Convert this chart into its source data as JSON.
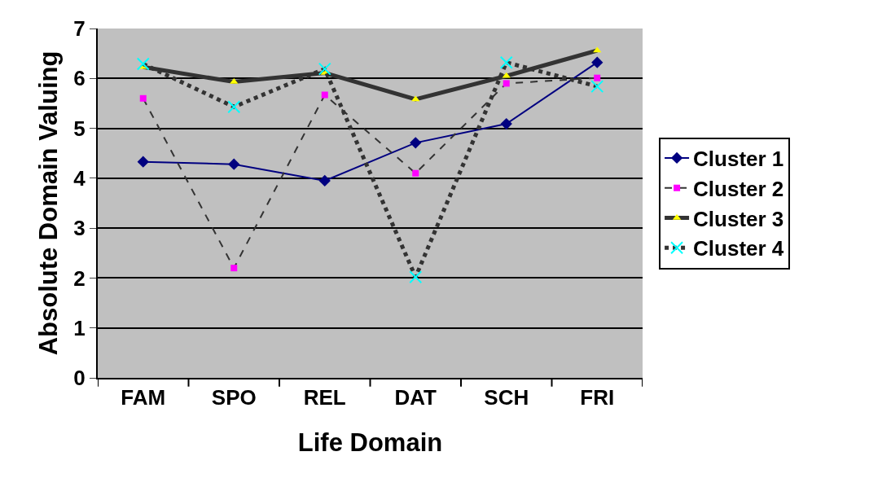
{
  "chart_data": {
    "type": "line",
    "xlabel": "Life Domain",
    "ylabel": "Absolute Domain Valuing",
    "categories": [
      "FAM",
      "SPO",
      "REL",
      "DAT",
      "SCH",
      "FRI"
    ],
    "ylim": [
      0,
      7
    ],
    "yticks": [
      0,
      1,
      2,
      3,
      4,
      5,
      6,
      7
    ],
    "grid": "y",
    "legend": "right",
    "series": [
      {
        "name": "Cluster 1",
        "color": "#000080",
        "marker": "diamond",
        "line_style": "solid",
        "values": [
          4.33,
          4.28,
          3.95,
          4.71,
          5.09,
          6.32
        ]
      },
      {
        "name": "Cluster 2",
        "color": "#ff00ff",
        "marker": "square",
        "line_style": "dashed",
        "values": [
          5.6,
          2.2,
          5.67,
          4.1,
          5.9,
          6.01
        ]
      },
      {
        "name": "Cluster 3",
        "color": "#ffff00",
        "marker": "triangle",
        "line_style": "solid",
        "values": [
          6.23,
          5.93,
          6.11,
          5.58,
          6.05,
          6.56
        ]
      },
      {
        "name": "Cluster 4",
        "color": "#00ffff",
        "marker": "cross",
        "line_style": "dotted",
        "values": [
          6.29,
          5.43,
          6.19,
          2.02,
          6.32,
          5.84
        ]
      }
    ]
  }
}
